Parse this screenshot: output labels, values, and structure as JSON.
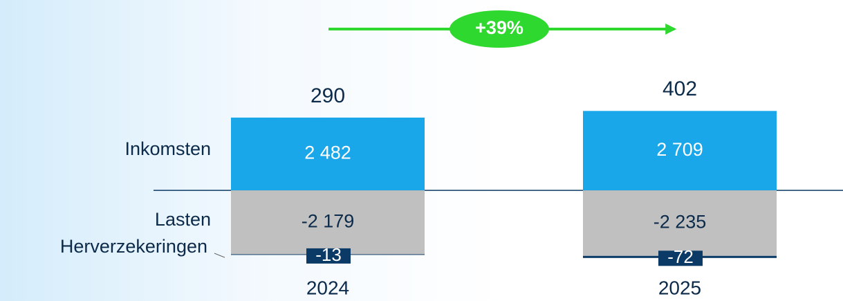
{
  "chart_data": {
    "type": "bar",
    "stacked": true,
    "annotation": "+39%",
    "categories": [
      "2024",
      "2025"
    ],
    "totals": [
      290,
      402
    ],
    "series": [
      {
        "name": "Inkomsten",
        "color": "#1aa7ea",
        "values": [
          2482,
          2709
        ],
        "value_labels": [
          "2 482",
          "2 709"
        ]
      },
      {
        "name": "Lasten",
        "color": "#c0c0c0",
        "values": [
          -2179,
          -2235
        ],
        "value_labels": [
          "-2 179",
          "-2 235"
        ]
      },
      {
        "name": "Herverzekeringen",
        "color": "#0c3a66",
        "values": [
          -13,
          -72
        ]
      }
    ],
    "ylim": [
      -2500,
      3000
    ]
  }
}
